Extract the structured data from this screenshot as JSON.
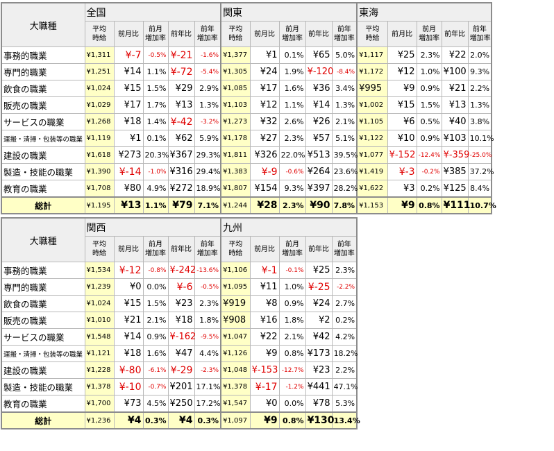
{
  "corner_label": "大職種",
  "subheaders": [
    "平均\n時給",
    "前月比",
    "前月\n増加率",
    "前年比",
    "前年\n増加率"
  ],
  "categories": [
    "事務的職業",
    "専門的職業",
    "飲食の職業",
    "販売の職業",
    "サービスの職業",
    "運搬・清掃・包装等の職業",
    "建設の職業",
    "製造・技能の職業",
    "教育の職業"
  ],
  "total_label": "総計",
  "top_regions": [
    {
      "name": "全国",
      "rows": [
        [
          "¥1,311",
          "¥-7",
          "-0.5%",
          "¥-21",
          "-1.6%"
        ],
        [
          "¥1,251",
          "¥14",
          "1.1%",
          "¥-72",
          "-5.4%"
        ],
        [
          "¥1,024",
          "¥15",
          "1.5%",
          "¥29",
          "2.9%"
        ],
        [
          "¥1,029",
          "¥17",
          "1.7%",
          "¥13",
          "1.3%"
        ],
        [
          "¥1,268",
          "¥18",
          "1.4%",
          "¥-42",
          "-3.2%"
        ],
        [
          "¥1,119",
          "¥1",
          "0.1%",
          "¥62",
          "5.9%"
        ],
        [
          "¥1,618",
          "¥273",
          "20.3%",
          "¥367",
          "29.3%"
        ],
        [
          "¥1,390",
          "¥-14",
          "-1.0%",
          "¥316",
          "29.4%"
        ],
        [
          "¥1,708",
          "¥80",
          "4.9%",
          "¥272",
          "18.9%"
        ]
      ],
      "total": [
        "¥1,195",
        "¥13",
        "1.1%",
        "¥79",
        "7.1%"
      ]
    },
    {
      "name": "関東",
      "rows": [
        [
          "¥1,377",
          "¥1",
          "0.1%",
          "¥65",
          "5.0%"
        ],
        [
          "¥1,305",
          "¥24",
          "1.9%",
          "¥-120",
          "-8.4%"
        ],
        [
          "¥1,085",
          "¥17",
          "1.6%",
          "¥36",
          "3.4%"
        ],
        [
          "¥1,103",
          "¥12",
          "1.1%",
          "¥14",
          "1.3%"
        ],
        [
          "¥1,273",
          "¥32",
          "2.6%",
          "¥26",
          "2.1%"
        ],
        [
          "¥1,178",
          "¥27",
          "2.3%",
          "¥57",
          "5.1%"
        ],
        [
          "¥1,811",
          "¥326",
          "22.0%",
          "¥513",
          "39.5%"
        ],
        [
          "¥1,383",
          "¥-9",
          "-0.6%",
          "¥264",
          "23.6%"
        ],
        [
          "¥1,807",
          "¥154",
          "9.3%",
          "¥397",
          "28.2%"
        ]
      ],
      "total": [
        "¥1,244",
        "¥28",
        "2.3%",
        "¥90",
        "7.8%"
      ]
    },
    {
      "name": "東海",
      "rows": [
        [
          "¥1,117",
          "¥25",
          "2.3%",
          "¥22",
          "2.0%"
        ],
        [
          "¥1,172",
          "¥12",
          "1.0%",
          "¥100",
          "9.3%"
        ],
        [
          "¥995",
          "¥9",
          "0.9%",
          "¥21",
          "2.2%"
        ],
        [
          "¥1,002",
          "¥15",
          "1.5%",
          "¥13",
          "1.3%"
        ],
        [
          "¥1,105",
          "¥6",
          "0.5%",
          "¥40",
          "3.8%"
        ],
        [
          "¥1,122",
          "¥10",
          "0.9%",
          "¥103",
          "10.1%"
        ],
        [
          "¥1,077",
          "¥-152",
          "-12.4%",
          "¥-359",
          "-25.0%"
        ],
        [
          "¥1,419",
          "¥-3",
          "-0.2%",
          "¥385",
          "37.2%"
        ],
        [
          "¥1,622",
          "¥3",
          "0.2%",
          "¥125",
          "8.4%"
        ]
      ],
      "total": [
        "¥1,153",
        "¥9",
        "0.8%",
        "¥111",
        "10.7%"
      ]
    }
  ],
  "bottom_regions": [
    {
      "name": "関西",
      "rows": [
        [
          "¥1,534",
          "¥-12",
          "-0.8%",
          "¥-242",
          "-13.6%"
        ],
        [
          "¥1,239",
          "¥0",
          "0.0%",
          "¥-6",
          "-0.5%"
        ],
        [
          "¥1,024",
          "¥15",
          "1.5%",
          "¥23",
          "2.3%"
        ],
        [
          "¥1,010",
          "¥21",
          "2.1%",
          "¥18",
          "1.8%"
        ],
        [
          "¥1,548",
          "¥14",
          "0.9%",
          "¥-162",
          "-9.5%"
        ],
        [
          "¥1,121",
          "¥18",
          "1.6%",
          "¥47",
          "4.4%"
        ],
        [
          "¥1,228",
          "¥-80",
          "-6.1%",
          "¥-29",
          "-2.3%"
        ],
        [
          "¥1,378",
          "¥-10",
          "-0.7%",
          "¥201",
          "17.1%"
        ],
        [
          "¥1,700",
          "¥73",
          "4.5%",
          "¥250",
          "17.2%"
        ]
      ],
      "total": [
        "¥1,236",
        "¥4",
        "0.3%",
        "¥4",
        "0.3%"
      ]
    },
    {
      "name": "九州",
      "rows": [
        [
          "¥1,106",
          "¥-1",
          "-0.1%",
          "¥25",
          "2.3%"
        ],
        [
          "¥1,095",
          "¥11",
          "1.0%",
          "¥-25",
          "-2.2%"
        ],
        [
          "¥919",
          "¥8",
          "0.9%",
          "¥24",
          "2.7%"
        ],
        [
          "¥908",
          "¥16",
          "1.8%",
          "¥2",
          "0.2%"
        ],
        [
          "¥1,047",
          "¥22",
          "2.1%",
          "¥42",
          "4.2%"
        ],
        [
          "¥1,126",
          "¥9",
          "0.8%",
          "¥173",
          "18.2%"
        ],
        [
          "¥1,048",
          "¥-153",
          "-12.7%",
          "¥23",
          "2.2%"
        ],
        [
          "¥1,378",
          "¥-17",
          "-1.2%",
          "¥441",
          "47.1%"
        ],
        [
          "¥1,547",
          "¥0",
          "0.0%",
          "¥78",
          "5.3%"
        ]
      ],
      "total": [
        "¥1,097",
        "¥9",
        "0.8%",
        "¥130",
        "13.4%"
      ]
    }
  ]
}
